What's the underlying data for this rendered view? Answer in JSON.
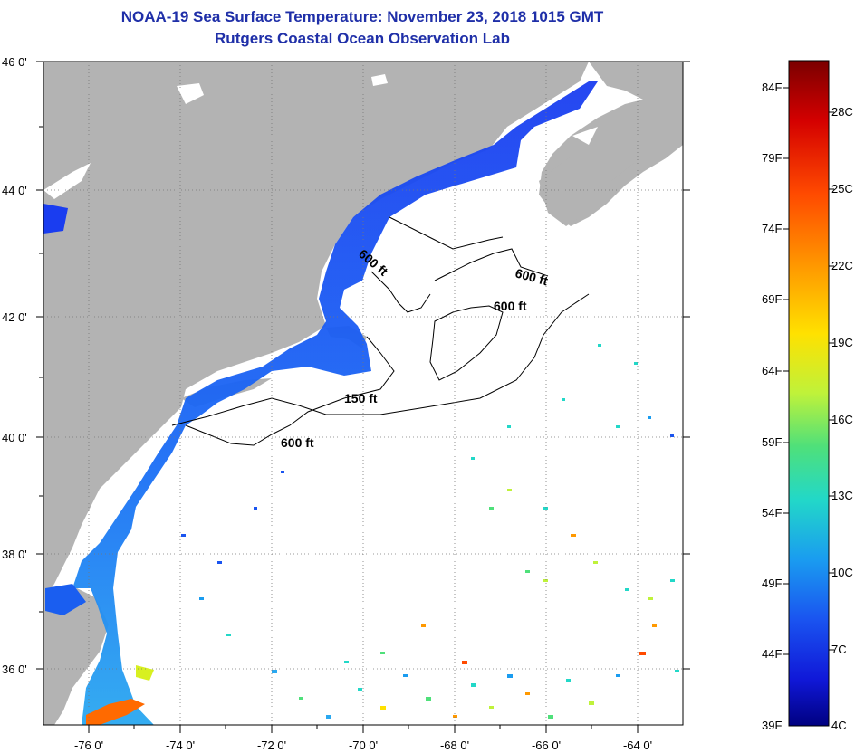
{
  "title": {
    "line1": "NOAA-19 Sea Surface Temperature:  November 23, 2018 1015 GMT",
    "line2": "Rutgers Coastal Ocean Observation Lab"
  },
  "map": {
    "lon_range": [
      -77,
      -63
    ],
    "lat_range": [
      35,
      46
    ],
    "lon_ticks": [
      "-76 0'",
      "-74 0'",
      "-72 0'",
      "-70 0'",
      "-68 0'",
      "-66 0'",
      "-64 0'"
    ],
    "lat_ticks": [
      "46 0'",
      "44 0'",
      "42 0'",
      "40 0'",
      "38 0'",
      "36 0'"
    ],
    "contour_labels": [
      "600 ft",
      "600 ft",
      "600 ft",
      "150 ft",
      "600 ft"
    ],
    "land_color": "#b3b3b3",
    "gridlines": "dotted"
  },
  "colorbar": {
    "fahrenheit": [
      "84F",
      "79F",
      "74F",
      "69F",
      "64F",
      "59F",
      "54F",
      "49F",
      "44F",
      "39F"
    ],
    "celsius": [
      "28C",
      "25C",
      "22C",
      "19C",
      "16C",
      "13C",
      "10C",
      "7C",
      "4C"
    ],
    "gradient": [
      "#7a0000",
      "#d40000",
      "#ff4a00",
      "#ff9900",
      "#ffe100",
      "#bff23a",
      "#4fe07a",
      "#22d8c8",
      "#1a9cf0",
      "#1a54f0",
      "#1018d8",
      "#000080"
    ]
  }
}
